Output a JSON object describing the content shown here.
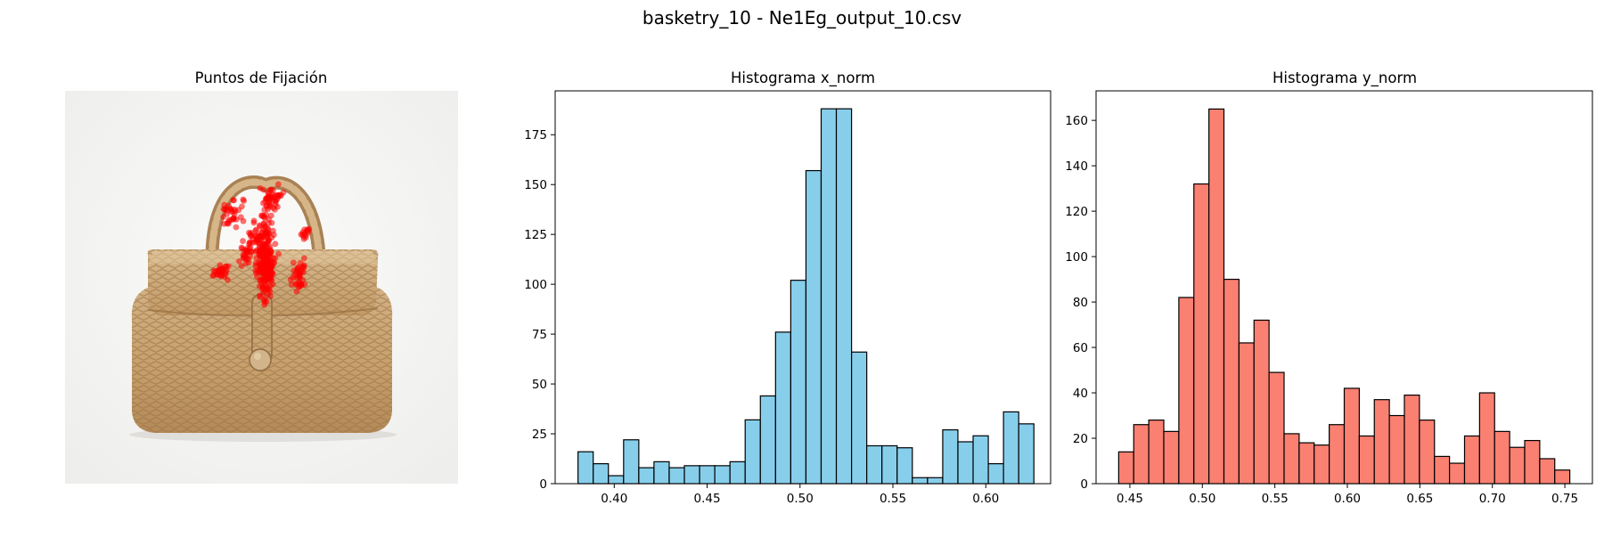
{
  "figure": {
    "title": "basketry_10 - Ne1Eg_output_10.csv"
  },
  "image_panel": {
    "title": "Puntos de Fijación",
    "fixation_color": "#ff0000"
  },
  "chart_data": [
    {
      "type": "bar",
      "title": "Histograma x_norm",
      "xlabel": "",
      "ylabel": "",
      "bar_color": "#87ceeb",
      "edge_color": "#000000",
      "bin_start": 0.3805,
      "bin_width": 0.00818,
      "values": [
        16,
        10,
        4,
        22,
        8,
        11,
        8,
        9,
        9,
        9,
        11,
        32,
        44,
        76,
        102,
        157,
        188,
        188,
        66,
        19,
        19,
        18,
        3,
        3,
        27,
        21,
        24,
        10,
        36,
        30
      ],
      "xlim": [
        0.3682,
        0.6349
      ],
      "ylim": [
        0,
        197
      ],
      "xticks": [
        0.4,
        0.45,
        0.5,
        0.55,
        0.6
      ],
      "xtick_labels": [
        "0.40",
        "0.45",
        "0.50",
        "0.55",
        "0.60"
      ],
      "yticks": [
        0,
        25,
        50,
        75,
        100,
        125,
        150,
        175
      ],
      "ytick_labels": [
        "0",
        "25",
        "50",
        "75",
        "100",
        "125",
        "150",
        "175"
      ]
    },
    {
      "type": "bar",
      "title": "Histograma y_norm",
      "xlabel": "",
      "ylabel": "",
      "bar_color": "#fa8072",
      "edge_color": "#000000",
      "bin_start": 0.4423,
      "bin_width": 0.01037,
      "values": [
        14,
        26,
        28,
        23,
        82,
        132,
        165,
        90,
        62,
        72,
        49,
        22,
        18,
        17,
        26,
        42,
        21,
        37,
        30,
        39,
        28,
        12,
        9,
        21,
        40,
        23,
        16,
        19,
        11,
        6
      ],
      "xlim": [
        0.4267,
        0.769
      ],
      "ylim": [
        0,
        173
      ],
      "xticks": [
        0.45,
        0.5,
        0.55,
        0.6,
        0.65,
        0.7,
        0.75
      ],
      "xtick_labels": [
        "0.45",
        "0.50",
        "0.55",
        "0.60",
        "0.65",
        "0.70",
        "0.75"
      ],
      "yticks": [
        0,
        20,
        40,
        60,
        80,
        100,
        120,
        140,
        160
      ],
      "ytick_labels": [
        "0",
        "20",
        "40",
        "60",
        "80",
        "100",
        "120",
        "140",
        "160"
      ]
    }
  ]
}
